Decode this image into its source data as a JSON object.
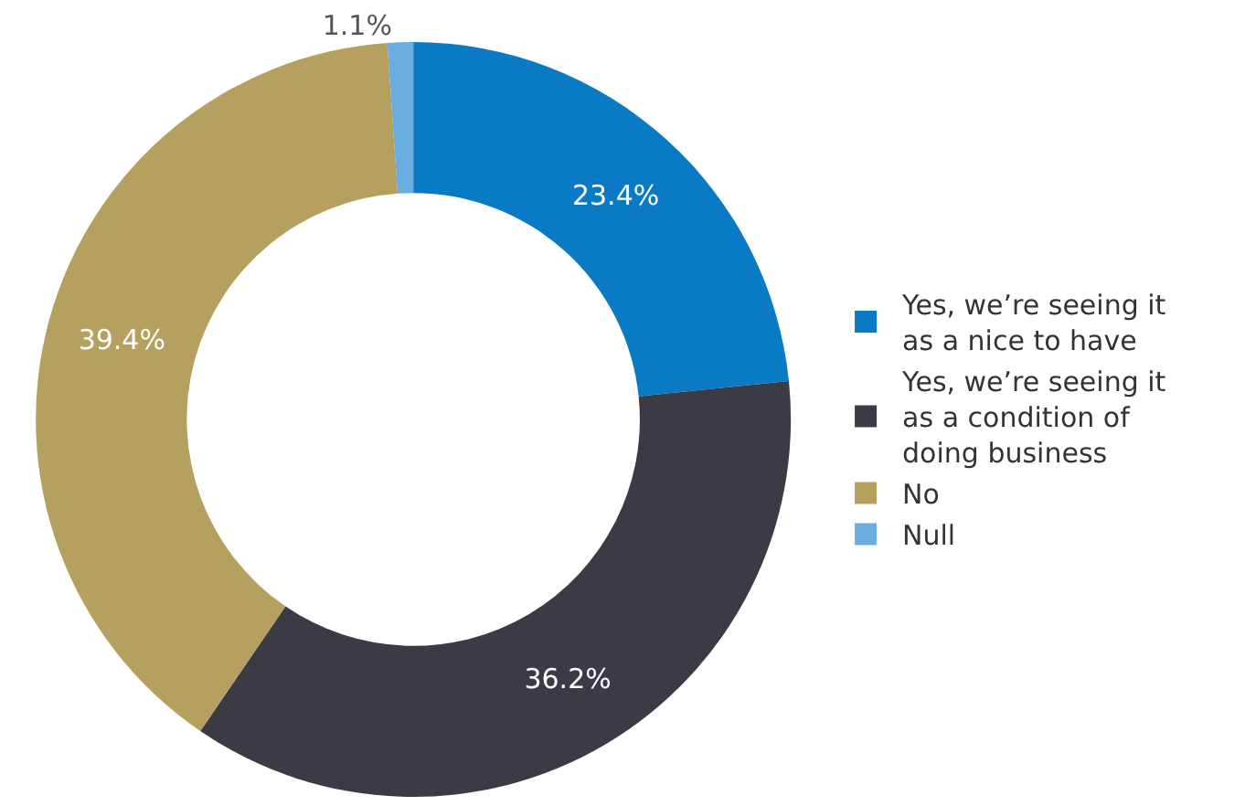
{
  "chart_data": {
    "type": "donut",
    "categories": [
      "Yes, we’re seeing it as a nice to have",
      "Yes, we’re seeing it as a condition of doing business",
      "No",
      "Null"
    ],
    "values": [
      23.4,
      36.2,
      39.4,
      1.1
    ],
    "colors": [
      "#0a7ac4",
      "#3a3b44",
      "#b5a060",
      "#6aade0"
    ],
    "value_labels": [
      "23.4%",
      "36.2%",
      "39.4%",
      "1.1%"
    ],
    "legend": "right"
  }
}
